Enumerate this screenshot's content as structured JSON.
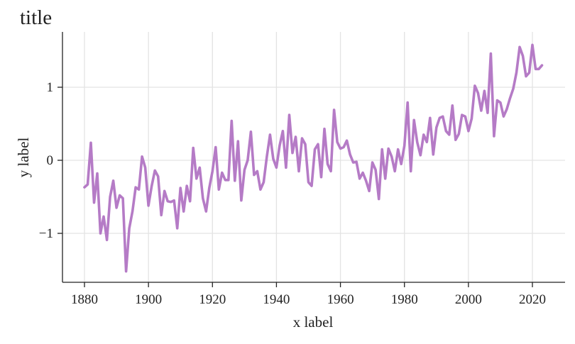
{
  "chart_data": {
    "type": "line",
    "title": "title",
    "xlabel": "x label",
    "ylabel": "y label",
    "xlim": [
      1873,
      2030
    ],
    "ylim": [
      -1.7,
      1.75
    ],
    "xticks": [
      1880,
      1900,
      1920,
      1940,
      1960,
      1980,
      2000,
      2020
    ],
    "yticks": [
      -1,
      0,
      1
    ],
    "ytick_labels": [
      "−1",
      "0",
      "1"
    ],
    "grid": true,
    "color": "#b57bc6",
    "x_start": 1880,
    "values": [
      -0.37,
      -0.33,
      0.24,
      -0.58,
      -0.18,
      -1.0,
      -0.77,
      -1.09,
      -0.5,
      -0.28,
      -0.65,
      -0.48,
      -0.52,
      -1.52,
      -0.93,
      -0.7,
      -0.37,
      -0.4,
      0.05,
      -0.1,
      -0.62,
      -0.35,
      -0.14,
      -0.22,
      -0.75,
      -0.42,
      -0.56,
      -0.57,
      -0.55,
      -0.93,
      -0.38,
      -0.7,
      -0.35,
      -0.56,
      0.17,
      -0.25,
      -0.1,
      -0.52,
      -0.7,
      -0.38,
      -0.15,
      0.18,
      -0.4,
      -0.17,
      -0.27,
      -0.27,
      0.54,
      -0.28,
      0.26,
      -0.55,
      -0.13,
      0.0,
      0.39,
      -0.2,
      -0.15,
      -0.4,
      -0.3,
      0.05,
      0.35,
      0.02,
      -0.1,
      0.2,
      0.4,
      -0.1,
      0.62,
      0.1,
      0.32,
      -0.15,
      0.3,
      0.22,
      -0.3,
      -0.35,
      0.15,
      0.22,
      -0.23,
      0.43,
      -0.05,
      -0.15,
      0.69,
      0.25,
      0.16,
      0.18,
      0.27,
      0.08,
      -0.03,
      -0.02,
      -0.25,
      -0.17,
      -0.28,
      -0.42,
      -0.03,
      -0.13,
      -0.53,
      0.15,
      -0.25,
      0.16,
      0.05,
      -0.15,
      0.15,
      -0.05,
      0.2,
      0.79,
      -0.15,
      0.55,
      0.25,
      0.07,
      0.35,
      0.25,
      0.58,
      0.08,
      0.45,
      0.58,
      0.6,
      0.4,
      0.35,
      0.75,
      0.28,
      0.36,
      0.62,
      0.6,
      0.4,
      0.57,
      1.02,
      0.92,
      0.68,
      0.95,
      0.65,
      1.46,
      0.33,
      0.82,
      0.79,
      0.6,
      0.7,
      0.85,
      0.98,
      1.2,
      1.55,
      1.43,
      1.15,
      1.2,
      1.58,
      1.25,
      1.25,
      1.3
    ]
  }
}
